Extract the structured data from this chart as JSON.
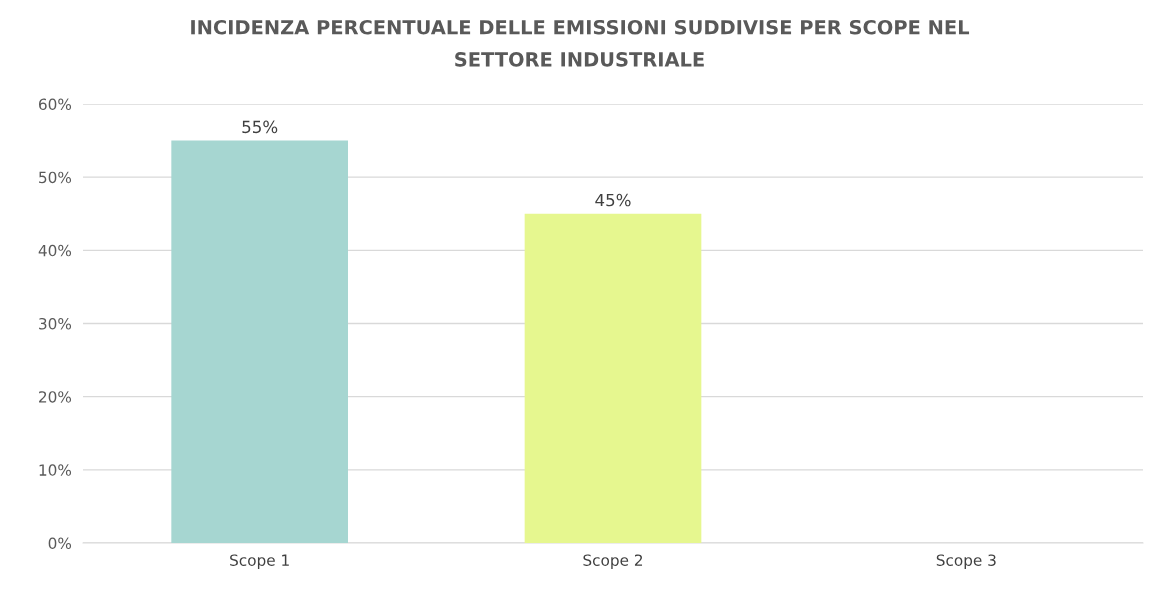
{
  "chart_data": {
    "type": "bar",
    "title": "INCIDENZA PERCENTUALE DELLE EMISSIONI SUDDIVISE PER SCOPE NEL\nSETTORE INDUSTRIALE",
    "categories": [
      "Scope 1",
      "Scope 2",
      "Scope 3"
    ],
    "values": [
      55,
      45,
      null
    ],
    "colors": [
      "#a6d6d1",
      "#e6f78f",
      "#cccccc"
    ],
    "value_labels": [
      "55%",
      "45%",
      null
    ],
    "ylim": [
      0,
      60
    ],
    "yticks": [
      {
        "value": 0,
        "label": "0%"
      },
      {
        "value": 10,
        "label": "10%"
      },
      {
        "value": 20,
        "label": "20%"
      },
      {
        "value": 30,
        "label": "30%"
      },
      {
        "value": 40,
        "label": "40%"
      },
      {
        "value": 50,
        "label": "50%"
      },
      {
        "value": 60,
        "label": "60%"
      }
    ],
    "grid": "y"
  }
}
